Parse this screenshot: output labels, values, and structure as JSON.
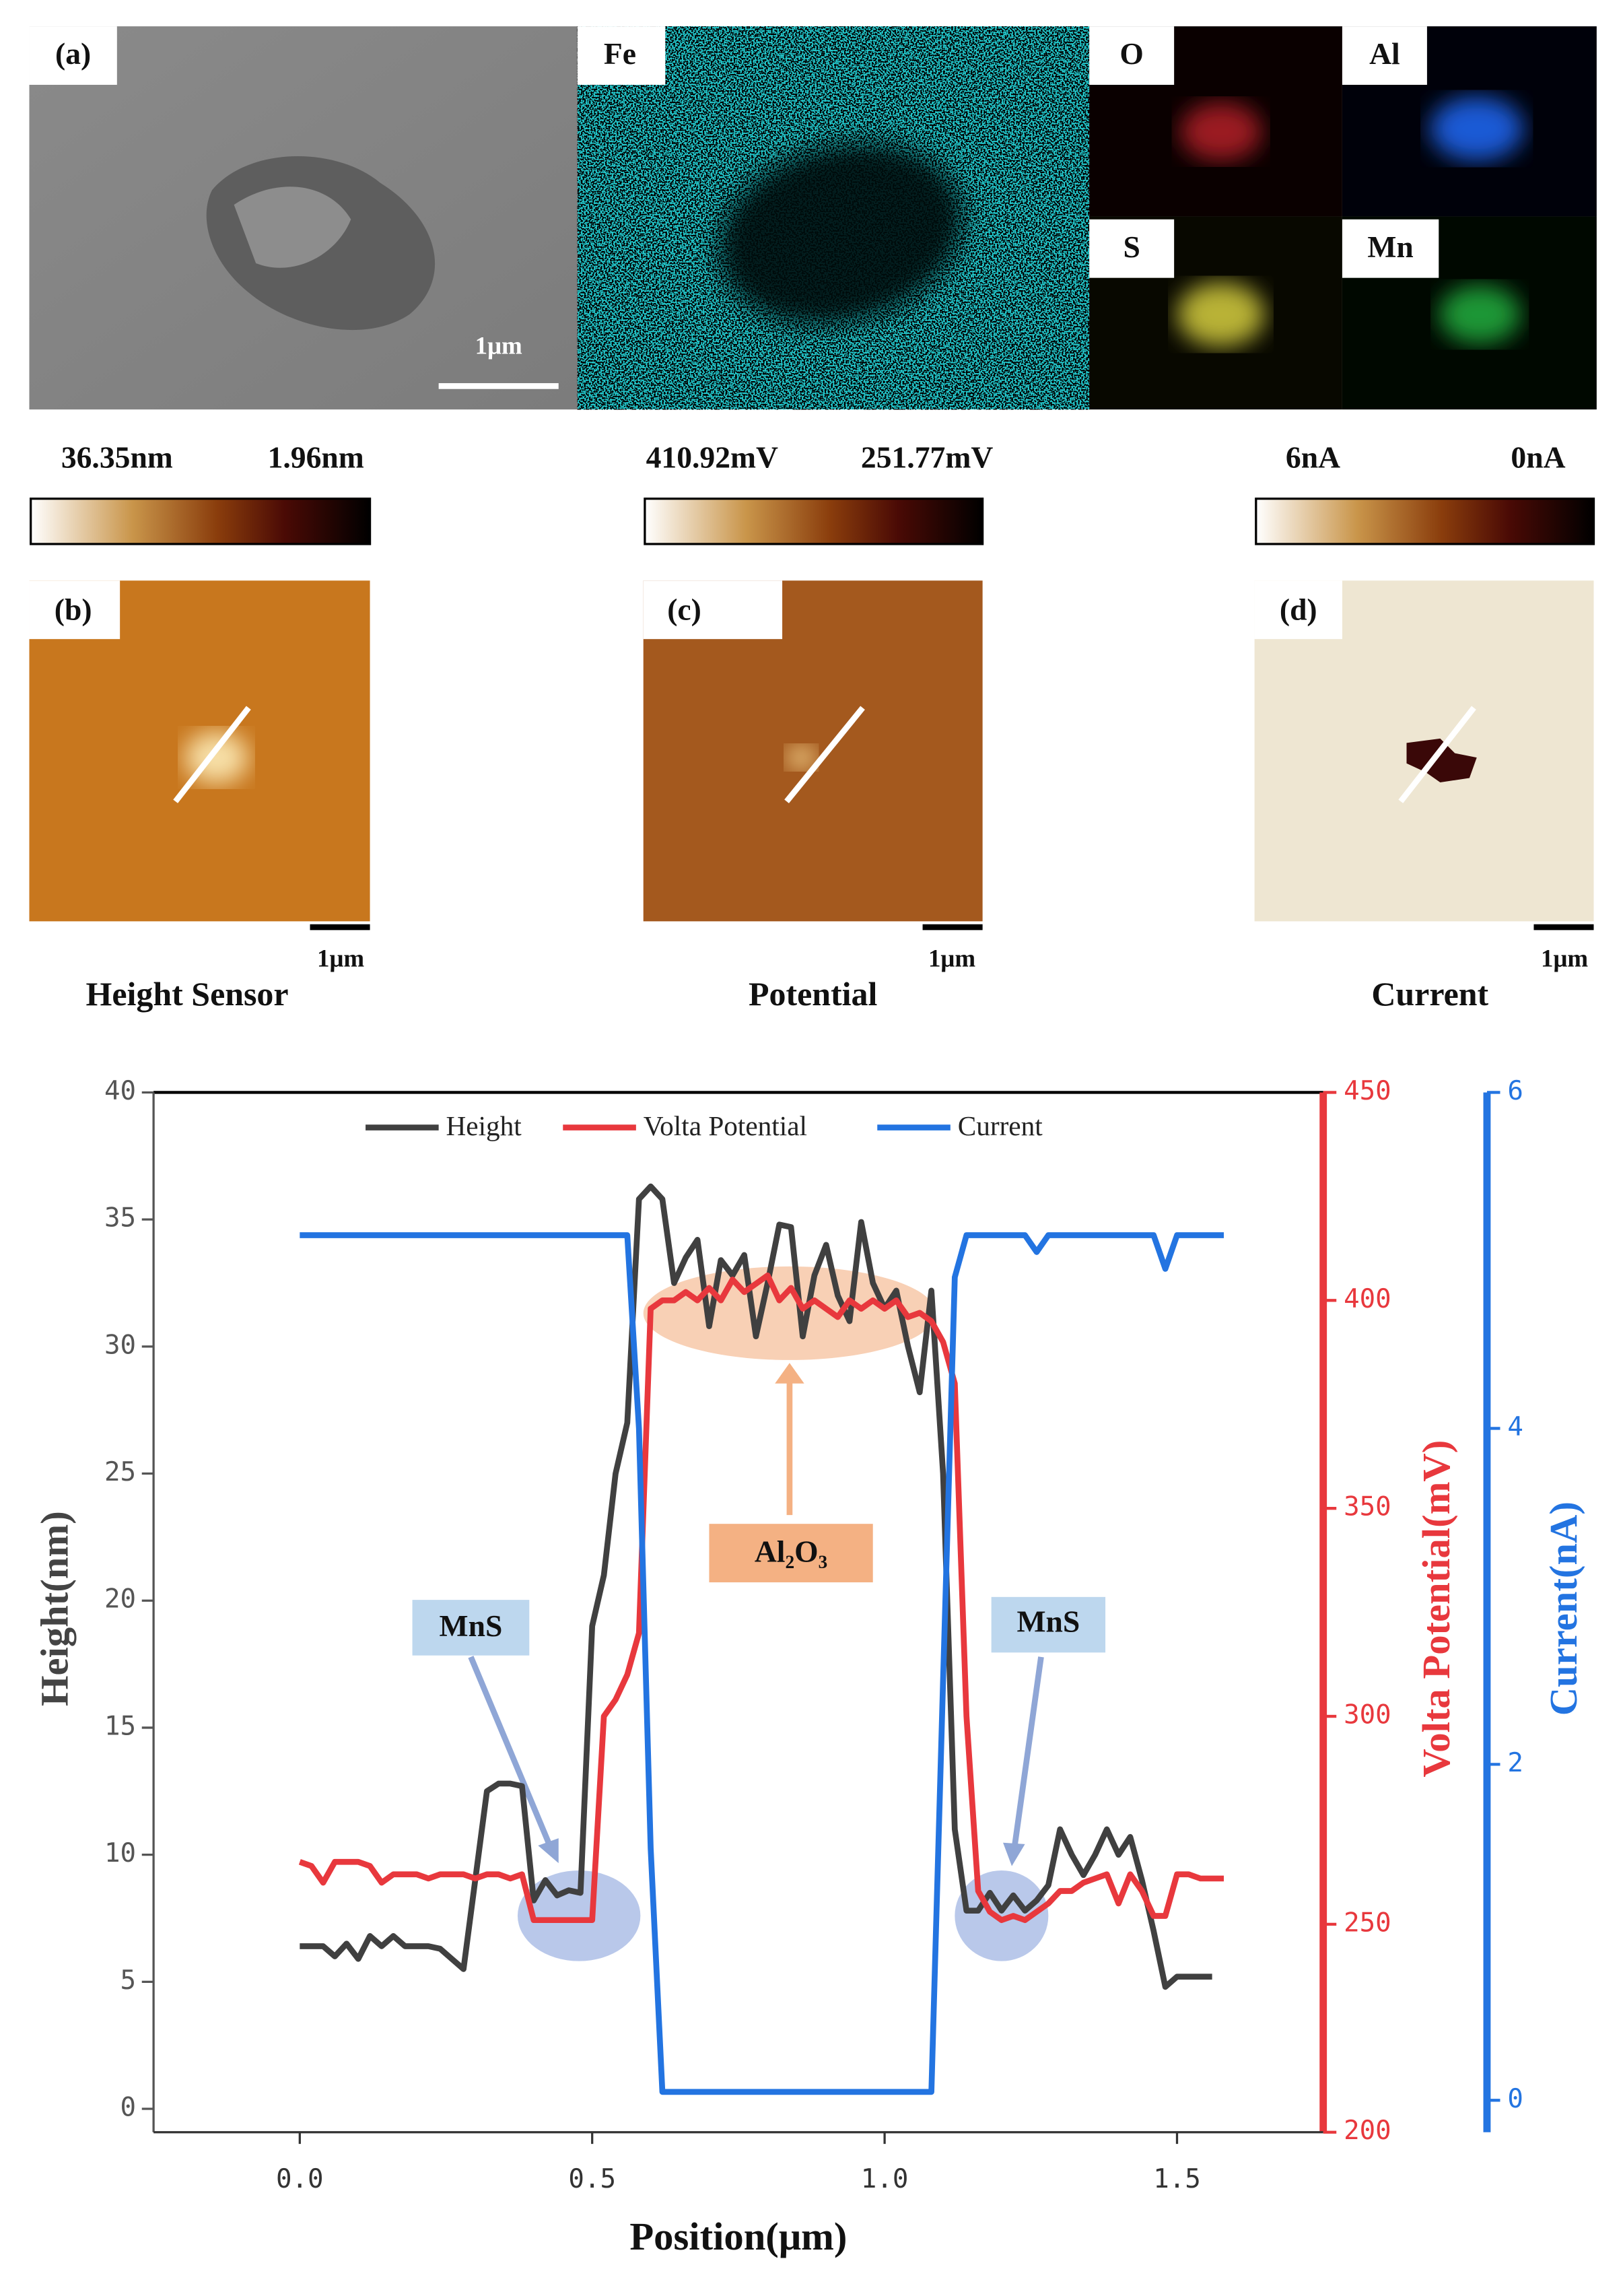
{
  "figure": {
    "sem": {
      "label": "(a)",
      "scale": "1μm"
    },
    "eds": [
      "Fe",
      "O",
      "Al",
      "S",
      "Mn"
    ],
    "colorbars": [
      {
        "high": "36.35nm",
        "low": "1.96nm"
      },
      {
        "high": "410.92mV",
        "low": "251.77mV"
      },
      {
        "high": "6nA",
        "low": "0nA"
      }
    ],
    "afm": [
      {
        "label": "(b)",
        "scale": "1μm",
        "title": "Height Sensor"
      },
      {
        "label": "(c)",
        "scale": "1μm",
        "title": "Potential"
      },
      {
        "label": "(d)",
        "scale": "1μm",
        "title": "Current"
      }
    ]
  },
  "chart_data": {
    "type": "line",
    "xlabel": "Position(μm)",
    "ylabel": "Height(nm)",
    "y2label": "Volta Potential(mV)",
    "y3label": "Current(nA)",
    "annotations": [
      "Al₂O₃",
      "MnS",
      "MnS"
    ],
    "legend": "top",
    "xlim": [
      -0.25,
      1.75
    ],
    "xticks": [
      {
        "value": 0,
        "label": "0.0"
      },
      0.5,
      {
        "value": 1,
        "label": "1.0"
      },
      1.5
    ],
    "ylim": [
      -0.92,
      40
    ],
    "yticks": [
      0,
      5,
      10,
      15,
      20,
      25,
      30,
      35,
      40
    ],
    "y2lim": [
      200,
      450
    ],
    "y2ticks": [
      200,
      250,
      300,
      350,
      400,
      450
    ],
    "y3lim": [
      -0.19,
      6
    ],
    "y3ticks": [
      0,
      2,
      4,
      6
    ],
    "x": [
      0,
      0.02,
      0.04,
      0.06,
      0.08,
      0.1,
      0.12,
      0.14,
      0.16,
      0.18,
      0.2,
      0.22,
      0.24,
      0.26,
      0.28,
      0.3,
      0.32,
      0.34,
      0.36,
      0.38,
      0.4,
      0.42,
      0.44,
      0.46,
      0.48,
      0.5,
      0.52,
      0.54,
      0.56,
      0.58,
      0.6,
      0.62,
      0.64,
      0.66,
      0.68,
      0.7,
      0.72,
      0.74,
      0.76,
      0.78,
      0.8,
      0.82,
      0.84,
      0.86,
      0.88,
      0.9,
      0.92,
      0.94,
      0.96,
      0.98,
      1,
      1.02,
      1.04,
      1.06,
      1.08,
      1.1,
      1.12,
      1.14,
      1.16,
      1.18,
      1.2,
      1.22,
      1.24,
      1.26,
      1.28,
      1.3,
      1.32,
      1.34,
      1.36,
      1.38,
      1.4,
      1.42,
      1.44,
      1.46,
      1.48,
      1.5,
      1.52,
      1.54,
      1.56,
      1.58
    ],
    "series": [
      {
        "name": "Height",
        "color": "#404040",
        "axis": "y",
        "values": [
          6.4,
          6.4,
          6.4,
          6.0,
          6.5,
          5.9,
          6.8,
          6.4,
          6.8,
          6.4,
          6.4,
          6.4,
          6.3,
          5.9,
          5.5,
          9.0,
          12.5,
          12.8,
          12.8,
          12.7,
          8.2,
          9.0,
          8.4,
          8.6,
          8.5,
          19.0,
          21.0,
          25.0,
          27.0,
          35.8,
          36.3,
          35.8,
          32.5,
          33.5,
          34.2,
          30.8,
          33.4,
          32.8,
          33.6,
          30.4,
          32.5,
          34.8,
          34.7,
          30.4,
          32.8,
          34.0,
          32.0,
          31.0,
          34.9,
          32.5,
          31.5,
          32.2,
          30.0,
          28.2,
          32.2,
          25.0,
          11.0,
          7.8,
          7.8,
          8.5,
          7.8,
          8.4,
          7.8,
          8.2,
          8.8,
          11.0,
          10.0,
          9.2,
          10.0,
          11.0,
          10.0,
          10.7,
          9.0,
          7.0,
          4.8,
          5.2,
          5.2,
          5.2,
          5.2,
          null
        ]
      },
      {
        "name": "Volta Potential",
        "color": "#e8383d",
        "axis": "y2",
        "values": [
          265,
          264,
          260,
          265,
          265,
          265,
          264,
          260,
          262,
          262,
          262,
          261,
          262,
          262,
          262,
          261,
          262,
          262,
          261,
          262,
          251,
          251,
          251,
          251,
          251,
          251,
          300,
          304,
          310,
          320,
          398,
          400,
          400,
          402,
          400,
          403,
          400,
          405,
          402,
          404,
          406,
          400,
          403,
          398,
          400,
          398,
          396,
          400,
          398,
          400,
          398,
          400,
          396,
          397,
          395,
          390,
          380,
          300,
          258,
          253,
          251,
          252,
          251,
          253,
          255,
          258,
          258,
          260,
          261,
          262,
          255,
          262,
          258,
          252,
          252,
          262,
          262,
          261,
          261,
          261
        ]
      },
      {
        "name": "Current",
        "color": "#2374e1",
        "axis": "y3",
        "values": [
          5.15,
          5.15,
          5.15,
          5.15,
          5.15,
          5.15,
          5.15,
          5.15,
          5.15,
          5.15,
          5.15,
          5.15,
          5.15,
          5.15,
          5.15,
          5.15,
          5.15,
          5.15,
          5.15,
          5.15,
          5.15,
          5.15,
          5.15,
          5.15,
          5.15,
          5.15,
          5.15,
          5.15,
          5.15,
          4.0,
          1.5,
          0.05,
          0.05,
          0.05,
          0.05,
          0.05,
          0.05,
          0.05,
          0.05,
          0.05,
          0.05,
          0.05,
          0.05,
          0.05,
          0.05,
          0.05,
          0.05,
          0.05,
          0.05,
          0.05,
          0.05,
          0.05,
          0.05,
          0.05,
          0.05,
          2.5,
          4.9,
          5.15,
          5.15,
          5.15,
          5.15,
          5.15,
          5.15,
          5.05,
          5.15,
          5.15,
          5.15,
          5.15,
          5.15,
          5.15,
          5.15,
          5.15,
          5.15,
          5.15,
          4.95,
          5.15,
          5.15,
          5.15,
          5.15,
          5.15
        ]
      }
    ]
  }
}
